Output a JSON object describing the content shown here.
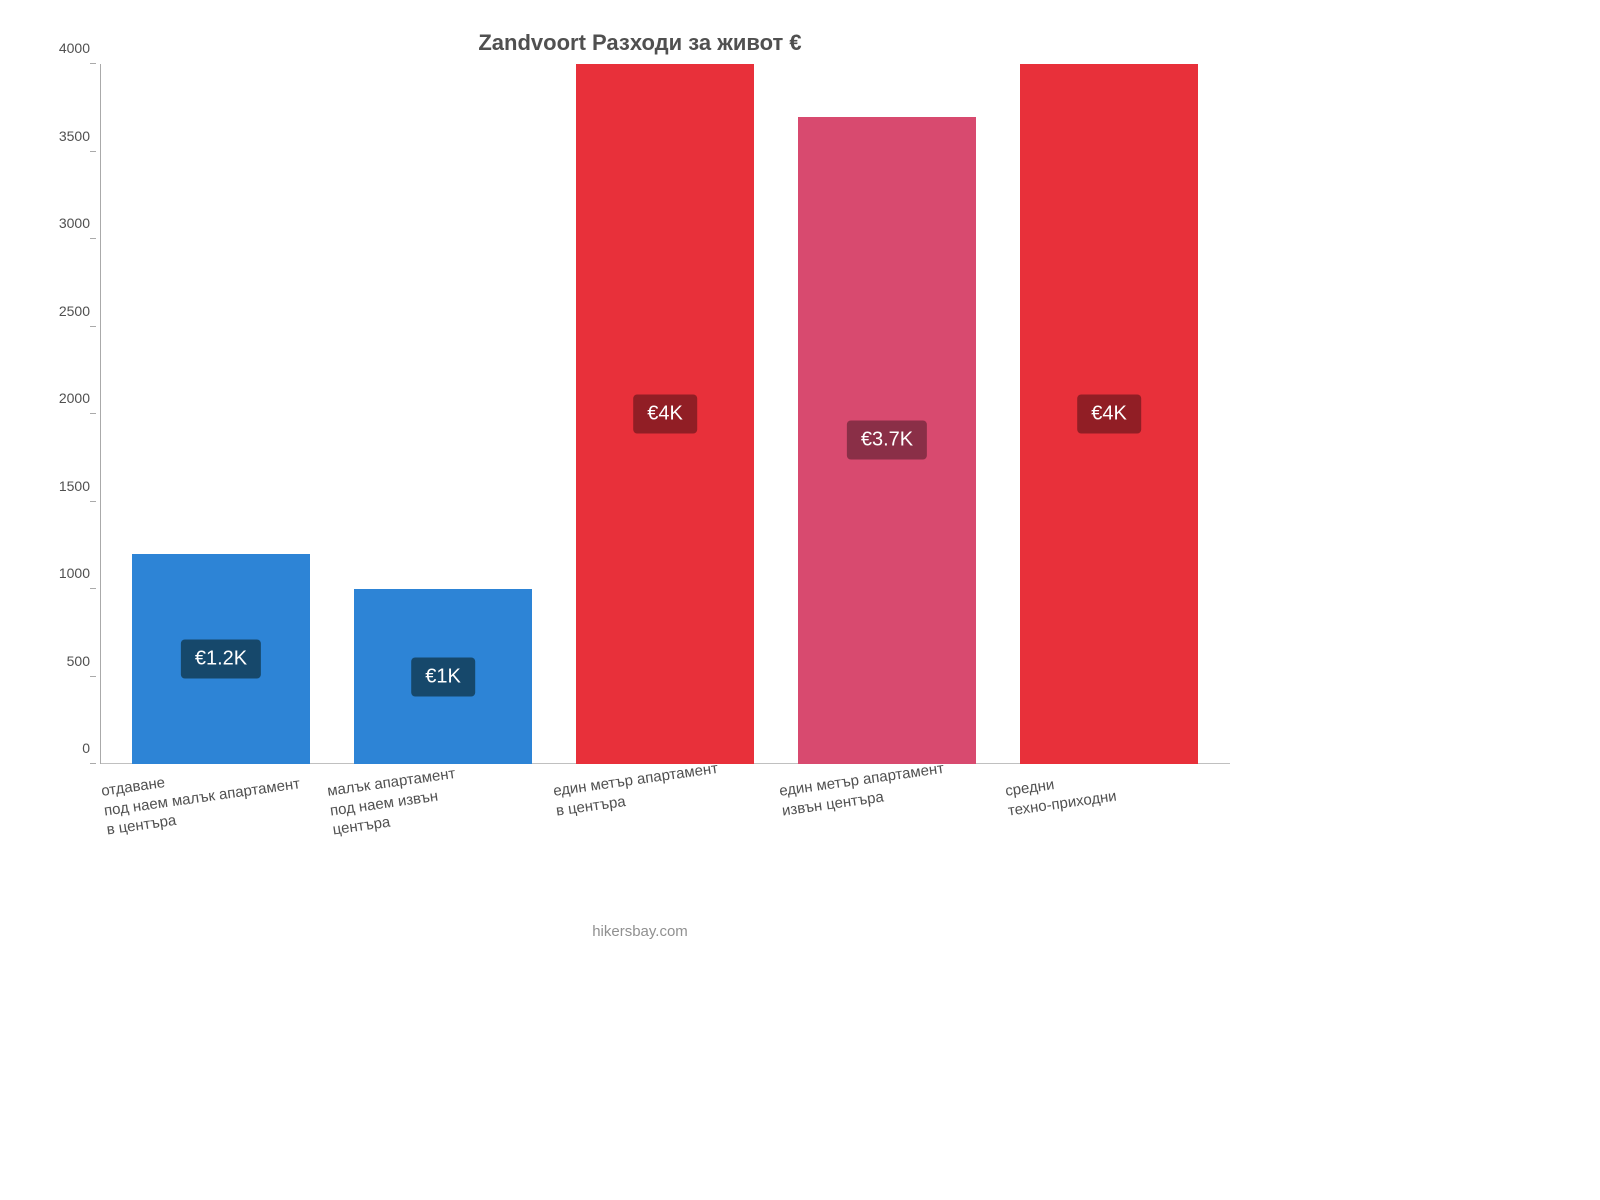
{
  "chart": {
    "type": "bar",
    "title": "Zandvoort Разходи за живот €",
    "title_fontsize": 22,
    "title_color": "#505050",
    "background_color": "#ffffff",
    "axis_color": "#aaaaaa",
    "baseline_color": "#c0c0c0",
    "tick_color": "#505050",
    "tick_fontsize": 14,
    "xlabel_fontsize": 15,
    "xlabel_color": "#505050",
    "xlabel_rotation_deg": -8,
    "ylim": [
      0,
      4000
    ],
    "ytick_step": 500,
    "yticks": [
      0,
      500,
      1000,
      1500,
      2000,
      2500,
      3000,
      3500,
      4000
    ],
    "bar_width": 0.8,
    "categories": [
      "отдаване\nпод наем малък апартамент\nв центъра",
      "малък апартамент\nпод наем извън\nцентъра",
      "един метър апартамент\nв центъра",
      "един метър апартамент\nизвън центъра",
      "средни\nтехно-приходни"
    ],
    "values": [
      1200,
      1000,
      4000,
      3700,
      4000
    ],
    "value_labels": [
      "€1.2K",
      "€1K",
      "€4K",
      "€3.7K",
      "€4K"
    ],
    "bar_colors": [
      "#2d84d6",
      "#2d84d6",
      "#e8303a",
      "#d84a6f",
      "#e8303a"
    ],
    "label_pill_colors": [
      "#16486b",
      "#16486b",
      "#911e25",
      "#8a2f47",
      "#911e25"
    ],
    "label_text_color": "#ffffff",
    "label_fontsize": 20
  },
  "footer": {
    "credit": "hikersbay.com",
    "color": "#909090",
    "fontsize": 15
  }
}
